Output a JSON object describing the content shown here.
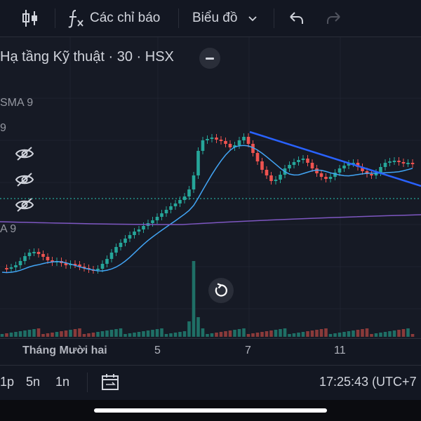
{
  "toolbar": {
    "indicators_label": "Các chỉ báo",
    "chart_type_label": "Biểu đồ"
  },
  "chart": {
    "title": "Hạ tầng Kỹ thuật · 30 · HSX",
    "indicator_labels": [
      "SMA 9",
      "9",
      "A 9"
    ]
  },
  "time_axis": {
    "ticks": [
      "Tháng Mười hai",
      "5",
      "7",
      "11"
    ]
  },
  "bottombar": {
    "intervals": [
      "1p",
      "5n",
      "1n"
    ],
    "clock": "17:25:43 (UTC+7"
  },
  "colors": {
    "up": "#26a69a",
    "down": "#ef5350",
    "trendline": "#2962ff",
    "sma_fast": "#42a5f5",
    "sma_slow": "#7e57c2",
    "background": "#161a25"
  },
  "icons": [
    "candle-style-icon",
    "function-icon",
    "chevron-down-icon",
    "undo-icon",
    "redo-icon",
    "eye-hidden-icon",
    "reset-icon",
    "date-range-icon"
  ]
}
